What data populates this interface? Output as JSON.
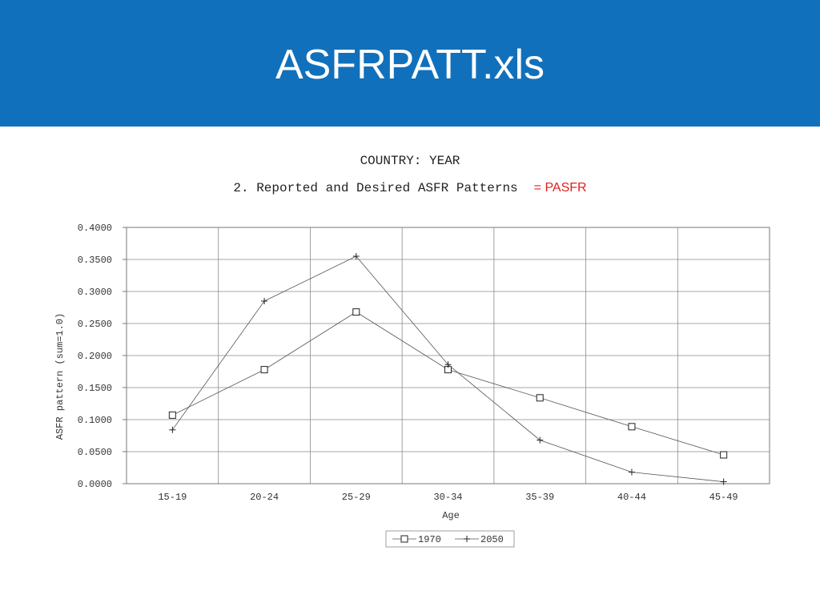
{
  "slide": {
    "title": "ASFRPATT.xls",
    "header_color": "#1170bb",
    "annotation": "= PASFR",
    "annotation_color": "#e0201e"
  },
  "chart_data": {
    "type": "line",
    "title": "COUNTRY:  YEAR",
    "subtitle": "2. Reported and Desired ASFR Patterns",
    "xlabel": "Age",
    "ylabel": "ASFR pattern (sum=1.0)",
    "categories": [
      "15-19",
      "20-24",
      "25-29",
      "30-34",
      "35-39",
      "40-44",
      "45-49"
    ],
    "ylim": [
      0,
      0.4
    ],
    "yticks": [
      "0.4000",
      "0.3500",
      "0.3000",
      "0.2500",
      "0.2000",
      "0.1500",
      "0.1000",
      "0.0500",
      "0.0000"
    ],
    "grid": true,
    "legend_position": "bottom",
    "series": [
      {
        "name": "1970",
        "marker": "square",
        "values": [
          0.107,
          0.178,
          0.268,
          0.178,
          0.134,
          0.089,
          0.045
        ]
      },
      {
        "name": "2050",
        "marker": "plus",
        "values": [
          0.084,
          0.285,
          0.355,
          0.186,
          0.068,
          0.018,
          0.003
        ]
      }
    ]
  }
}
